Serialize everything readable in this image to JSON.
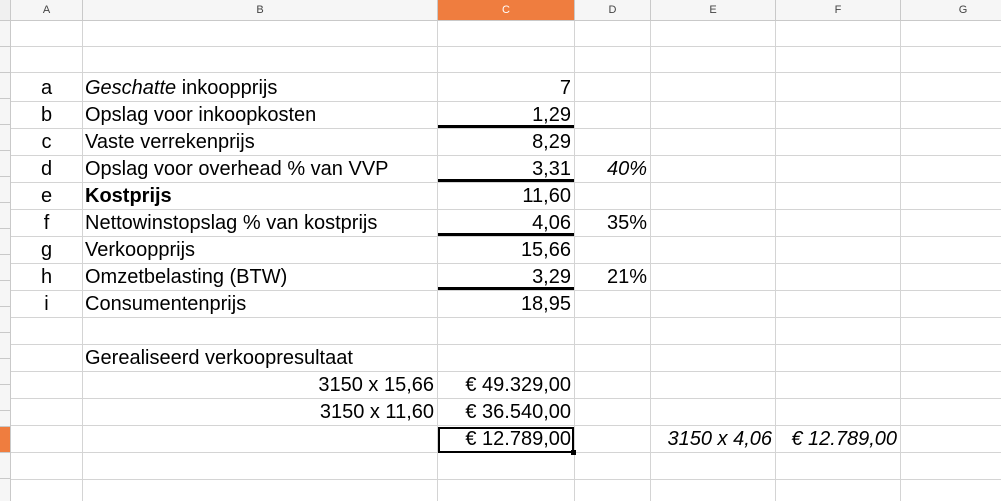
{
  "columns": [
    {
      "letter": "A",
      "selected": false
    },
    {
      "letter": "B",
      "selected": false
    },
    {
      "letter": "C",
      "selected": true
    },
    {
      "letter": "D",
      "selected": false
    },
    {
      "letter": "E",
      "selected": false
    },
    {
      "letter": "F",
      "selected": false
    },
    {
      "letter": "G",
      "selected": false
    }
  ],
  "colors": {
    "accent": "#ef7d3f",
    "grid": "#d4d4d4",
    "header_bg": "#f6f6f6"
  },
  "rows": [
    {
      "label": "a",
      "desc": "inkoopprijs",
      "desc_italic_prefix": "Geschatte",
      "value": "7",
      "pct": ""
    },
    {
      "label": "b",
      "desc": "Opslag voor inkoopkosten",
      "value": "1,29",
      "pct": ""
    },
    {
      "label": "c",
      "desc": "Vaste verrekenprijs",
      "value": "8,29",
      "pct": ""
    },
    {
      "label": "d",
      "desc": "Opslag voor overhead % van VVP",
      "value": "3,31",
      "pct": "40%"
    },
    {
      "label": "e",
      "desc": "Kostprijs",
      "value": "11,60",
      "pct": ""
    },
    {
      "label": "f",
      "desc": "Nettowinstopslag % van kostprijs",
      "value": "4,06",
      "pct": "35%"
    },
    {
      "label": "g",
      "desc": "Verkoopprijs",
      "value": "15,66",
      "pct": ""
    },
    {
      "label": "h",
      "desc": "Omzetbelasting (BTW)",
      "value": "3,29",
      "pct": "21%"
    },
    {
      "label": "i",
      "desc": "Consumentenprijs",
      "value": "18,95",
      "pct": ""
    }
  ],
  "result": {
    "title": "Gerealiseerd verkoopresultaat",
    "line1_formula": "3150 x 15,66",
    "line1_value": "€ 49.329,00",
    "line2_formula": "3150 x 11,60",
    "line2_value": "€ 36.540,00",
    "total_value": "€ 12.789,00",
    "check_formula": "3150 x 4,06",
    "check_value": "€ 12.789,00"
  }
}
